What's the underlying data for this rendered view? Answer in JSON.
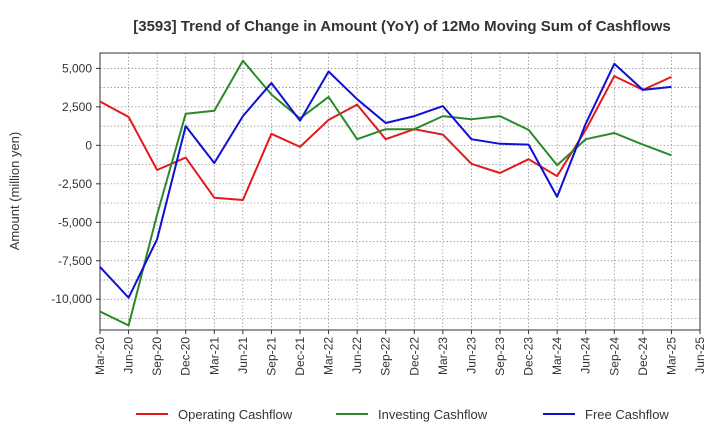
{
  "chart_data": {
    "type": "line",
    "title": "[3593]  Trend of Change in Amount (YoY) of 12Mo Moving Sum of Cashflows",
    "xlabel": "",
    "ylabel": "Amount (million yen)",
    "ylim": [
      -12000,
      6000
    ],
    "yticks": [
      5000,
      2500,
      0,
      -2500,
      -5000,
      -7500,
      -10000
    ],
    "ytick_labels": [
      "5,000",
      "2,500",
      "0",
      "-2,500",
      "-5,000",
      "-7,500",
      "-10,000"
    ],
    "categories": [
      "Mar-20",
      "Jun-20",
      "Sep-20",
      "Dec-20",
      "Mar-21",
      "Jun-21",
      "Sep-21",
      "Dec-21",
      "Mar-22",
      "Jun-22",
      "Sep-22",
      "Dec-22",
      "Mar-23",
      "Jun-23",
      "Sep-23",
      "Dec-23",
      "Mar-24",
      "Jun-24",
      "Sep-24",
      "Dec-24",
      "Mar-25",
      "Jun-25"
    ],
    "grid": true,
    "legend_position": "bottom",
    "series": [
      {
        "name": "Operating Cashflow",
        "color": "#e31a1c",
        "values": [
          2850,
          1850,
          -1600,
          -800,
          -3400,
          -3550,
          750,
          -100,
          1650,
          2650,
          400,
          1050,
          700,
          -1200,
          -1800,
          -900,
          -2000,
          1000,
          4500,
          3600,
          4450,
          null
        ]
      },
      {
        "name": "Investing Cashflow",
        "color": "#2a8a2a",
        "values": [
          -10800,
          -11700,
          -4500,
          2050,
          2250,
          5500,
          3300,
          1750,
          3150,
          400,
          1050,
          1050,
          1900,
          1700,
          1900,
          1000,
          -1300,
          400,
          800,
          50,
          -650,
          null
        ]
      },
      {
        "name": "Free Cashflow",
        "color": "#1010d0",
        "values": [
          -7900,
          -9900,
          -6100,
          1250,
          -1150,
          1900,
          4050,
          1600,
          4800,
          3000,
          1450,
          1900,
          2550,
          400,
          100,
          50,
          -3350,
          1400,
          5300,
          3600,
          3800,
          null
        ]
      }
    ]
  }
}
